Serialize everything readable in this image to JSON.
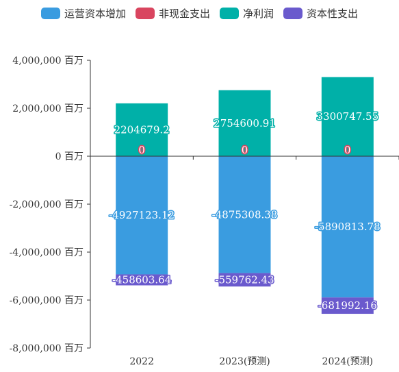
{
  "chart_data": {
    "type": "bar",
    "stacked": true,
    "categories": [
      "2022",
      "2023(预测)",
      "2024(预测)"
    ],
    "series": [
      {
        "name": "运营资本增加",
        "color": "#3a9ce0",
        "values": [
          -4927123.12,
          -4875308.38,
          -5890813.78
        ],
        "labels": [
          "-4927123.12",
          "-4875308.38",
          "-5890813.78"
        ]
      },
      {
        "name": "非现金支出",
        "color": "#d9455f",
        "values": [
          0,
          0,
          0
        ],
        "labels": [
          "0",
          "0",
          "0"
        ]
      },
      {
        "name": "净利润",
        "color": "#00b0a8",
        "values": [
          2204679.2,
          2754600.91,
          3300747.55
        ],
        "labels": [
          "2204679.2",
          "2754600.91",
          "3300747.55"
        ]
      },
      {
        "name": "资本性支出",
        "color": "#6a5acd",
        "values": [
          -458603.64,
          -559762.43,
          -681992.16
        ],
        "labels": [
          "-458603.64",
          "-559762.43",
          "-681992.16"
        ]
      }
    ],
    "ylim": [
      -8000000,
      4000000
    ],
    "ytick_values": [
      4000000,
      2000000,
      0,
      -2000000,
      -4000000,
      -6000000,
      -8000000
    ],
    "ytick_labels": [
      "4,000,000 百万",
      "2,000,000 百万",
      "0 百万",
      "-2,000,000 百万",
      "-4,000,000 百万",
      "-6,000,000 百万",
      "-8,000,000 百万"
    ],
    "legend_position": "top",
    "grid": false
  }
}
